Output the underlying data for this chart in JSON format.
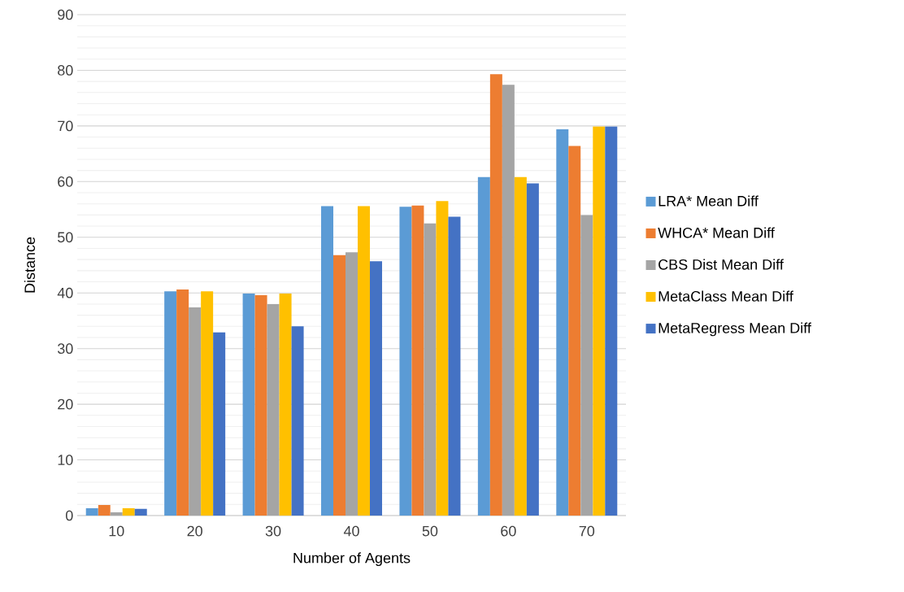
{
  "chart_data": {
    "type": "bar",
    "xlabel": "Number of Agents",
    "ylabel": "Distance",
    "categories": [
      "10",
      "20",
      "30",
      "40",
      "50",
      "60",
      "70"
    ],
    "series": [
      {
        "name": "LRA* Mean Diff",
        "color": "#5b9bd5",
        "values": [
          1.3,
          40.3,
          39.9,
          55.6,
          55.5,
          60.8,
          69.4
        ]
      },
      {
        "name": "WHCA* Mean Diff",
        "color": "#ed7d31",
        "values": [
          1.9,
          40.6,
          39.6,
          46.8,
          55.7,
          79.3,
          66.4
        ]
      },
      {
        "name": "CBS Dist Mean Diff",
        "color": "#a5a5a5",
        "values": [
          0.6,
          37.4,
          38.0,
          47.3,
          52.5,
          77.4,
          54.0
        ]
      },
      {
        "name": "MetaClass Mean Diff",
        "color": "#ffc000",
        "values": [
          1.3,
          40.3,
          39.9,
          55.6,
          56.5,
          60.8,
          69.9
        ]
      },
      {
        "name": "MetaRegress Mean Diff",
        "color": "#4472c4",
        "values": [
          1.2,
          32.9,
          34.0,
          45.7,
          53.7,
          59.7,
          69.9
        ]
      }
    ],
    "ylim": [
      0,
      90
    ],
    "yticks": [
      0,
      10,
      20,
      30,
      40,
      50,
      60,
      70,
      80,
      90
    ],
    "grid": "y",
    "legend": "right"
  }
}
